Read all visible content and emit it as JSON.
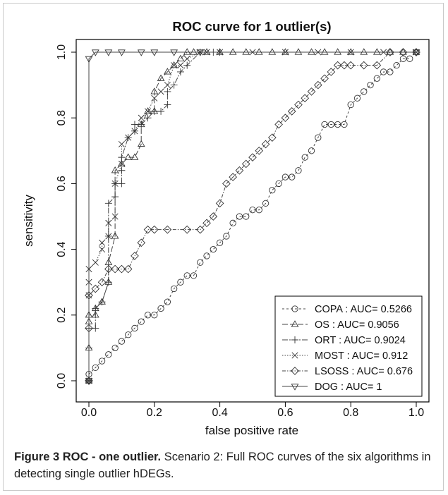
{
  "chart_data": {
    "type": "line",
    "title": "ROC curve for  1 outlier(s)",
    "xlabel": "false positive rate",
    "ylabel": "sensitivity",
    "xlim": [
      0,
      1
    ],
    "ylim": [
      0,
      1
    ],
    "xticks": [
      "0.0",
      "0.2",
      "0.4",
      "0.6",
      "0.8",
      "1.0"
    ],
    "yticks": [
      "0.0",
      "0.2",
      "0.4",
      "0.6",
      "0.8",
      "1.0"
    ],
    "grid": false,
    "legend_position": "bottom-right",
    "series": [
      {
        "name": "COPA : AUC= 0.5266",
        "marker": "circle",
        "dash": "3,3",
        "x": [
          0,
          0.02,
          0.04,
          0.06,
          0.08,
          0.1,
          0.12,
          0.14,
          0.16,
          0.18,
          0.2,
          0.22,
          0.24,
          0.26,
          0.28,
          0.3,
          0.32,
          0.34,
          0.36,
          0.38,
          0.4,
          0.42,
          0.44,
          0.46,
          0.48,
          0.5,
          0.52,
          0.54,
          0.56,
          0.58,
          0.6,
          0.62,
          0.64,
          0.66,
          0.68,
          0.7,
          0.72,
          0.74,
          0.76,
          0.78,
          0.8,
          0.82,
          0.84,
          0.86,
          0.88,
          0.9,
          0.92,
          0.94,
          0.96,
          0.98
        ],
        "y": [
          0.02,
          0.04,
          0.06,
          0.08,
          0.1,
          0.12,
          0.14,
          0.16,
          0.18,
          0.2,
          0.2,
          0.22,
          0.24,
          0.28,
          0.3,
          0.32,
          0.32,
          0.36,
          0.38,
          0.4,
          0.42,
          0.44,
          0.48,
          0.5,
          0.5,
          0.52,
          0.52,
          0.54,
          0.58,
          0.6,
          0.62,
          0.62,
          0.64,
          0.68,
          0.7,
          0.74,
          0.78,
          0.78,
          0.78,
          0.78,
          0.84,
          0.86,
          0.88,
          0.9,
          0.92,
          0.94,
          0.94,
          0.96,
          0.98,
          0.98
        ]
      },
      {
        "name": "OS : AUC= 0.9056",
        "marker": "triangle-up",
        "dash": "8,3",
        "x": [
          0,
          0,
          0,
          0,
          0.02,
          0.02,
          0.04,
          0.06,
          0.06,
          0.08,
          0.08,
          0.1,
          0.12,
          0.14,
          0.16,
          0.16,
          0.18,
          0.2,
          0.2,
          0.22,
          0.24,
          0.26,
          0.28,
          0.3,
          0.32,
          0.36,
          0.4,
          0.44,
          0.48,
          0.52,
          0.56,
          0.6,
          0.64,
          0.68,
          0.72,
          0.76,
          0.8,
          0.84,
          0.88,
          0.92,
          0.96,
          1
        ],
        "y": [
          0,
          0.1,
          0.18,
          0.2,
          0.2,
          0.22,
          0.24,
          0.3,
          0.36,
          0.44,
          0.64,
          0.66,
          0.68,
          0.68,
          0.72,
          0.78,
          0.82,
          0.82,
          0.88,
          0.92,
          0.94,
          0.96,
          0.98,
          1,
          1,
          1,
          1,
          1,
          1,
          1,
          1,
          1,
          1,
          1,
          1,
          1,
          1,
          1,
          1,
          1,
          1,
          1
        ]
      },
      {
        "name": "ORT : AUC= 0.9024",
        "marker": "plus",
        "dash": "8,2,2,2",
        "x": [
          0,
          0,
          0,
          0.02,
          0.02,
          0.04,
          0.06,
          0.06,
          0.06,
          0.08,
          0.08,
          0.1,
          0.1,
          0.1,
          0.12,
          0.14,
          0.14,
          0.16,
          0.18,
          0.2,
          0.22,
          0.24,
          0.24,
          0.26,
          0.28,
          0.3,
          0.34,
          0.38,
          0.4
        ],
        "y": [
          0,
          0.1,
          0.16,
          0.16,
          0.22,
          0.24,
          0.3,
          0.44,
          0.54,
          0.56,
          0.6,
          0.6,
          0.64,
          0.68,
          0.74,
          0.76,
          0.78,
          0.78,
          0.8,
          0.82,
          0.82,
          0.84,
          0.88,
          0.9,
          0.94,
          0.96,
          1,
          1,
          1
        ]
      },
      {
        "name": "MOST : AUC= 0.912",
        "marker": "x",
        "dash": "1.5,2",
        "x": [
          0,
          0,
          0,
          0,
          0.02,
          0.04,
          0.04,
          0.06,
          0.06,
          0.08,
          0.08,
          0.1,
          0.1,
          0.12,
          0.14,
          0.16,
          0.18,
          0.2,
          0.22,
          0.24,
          0.26,
          0.28,
          0.3,
          0.34,
          0.36,
          0.4,
          0.5,
          0.6,
          0.7,
          0.8,
          0.9,
          1
        ],
        "y": [
          0,
          0.26,
          0.3,
          0.34,
          0.36,
          0.4,
          0.42,
          0.44,
          0.48,
          0.5,
          0.6,
          0.66,
          0.72,
          0.74,
          0.76,
          0.8,
          0.82,
          0.86,
          0.88,
          0.9,
          0.96,
          0.96,
          0.98,
          1,
          1,
          1,
          1,
          1,
          1,
          1,
          1,
          1
        ]
      },
      {
        "name": "LSOSS : AUC= 0.676",
        "marker": "diamond",
        "dash": "5,2,1.5,2",
        "x": [
          0,
          0,
          0,
          0.02,
          0.04,
          0.06,
          0.08,
          0.1,
          0.12,
          0.14,
          0.16,
          0.18,
          0.2,
          0.24,
          0.3,
          0.34,
          0.36,
          0.38,
          0.4,
          0.42,
          0.44,
          0.46,
          0.48,
          0.5,
          0.52,
          0.54,
          0.56,
          0.58,
          0.6,
          0.62,
          0.64,
          0.66,
          0.68,
          0.7,
          0.72,
          0.74,
          0.76,
          0.78,
          0.8,
          0.84,
          0.88,
          0.92,
          0.96,
          1
        ],
        "y": [
          0,
          0.16,
          0.26,
          0.28,
          0.3,
          0.34,
          0.34,
          0.34,
          0.34,
          0.38,
          0.42,
          0.46,
          0.46,
          0.46,
          0.46,
          0.46,
          0.48,
          0.5,
          0.54,
          0.6,
          0.62,
          0.64,
          0.66,
          0.68,
          0.7,
          0.72,
          0.74,
          0.78,
          0.8,
          0.82,
          0.84,
          0.86,
          0.88,
          0.9,
          0.92,
          0.94,
          0.96,
          0.96,
          0.96,
          0.96,
          0.96,
          1,
          1,
          1
        ]
      },
      {
        "name": "DOG : AUC= 1",
        "marker": "triangle-down",
        "dash": "",
        "x": [
          0,
          0,
          0.02,
          0.06,
          0.1,
          0.16,
          0.2,
          0.26,
          0.34,
          1
        ],
        "y": [
          0,
          0.98,
          1,
          1,
          1,
          1,
          1,
          1,
          1,
          1
        ]
      }
    ]
  },
  "caption": {
    "label": "Figure 3 ROC - one outlier.",
    "text": " Scenario 2: Full ROC curves of the six algorithms in detecting single outlier hDEGs."
  }
}
